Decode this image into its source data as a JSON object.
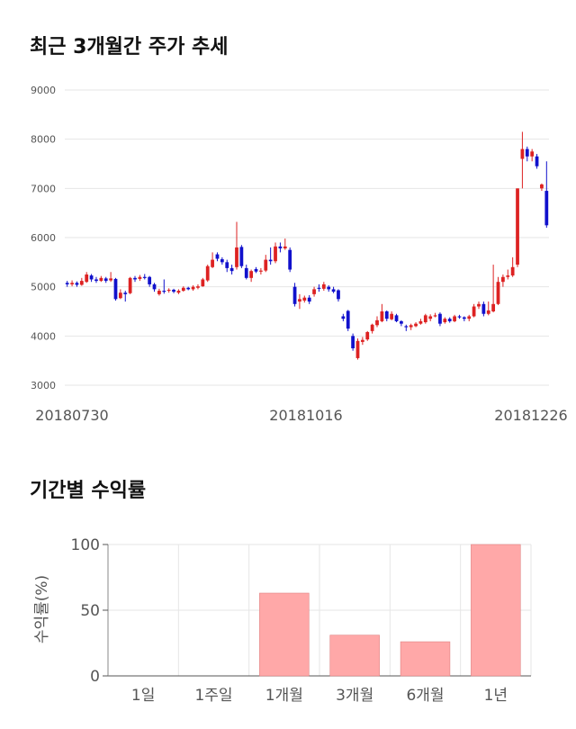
{
  "section1_title": "최근 3개월간 주가 추세",
  "section2_title": "기간별 수익률",
  "colors": {
    "up": "#dd2222",
    "down": "#1111cc",
    "bar": "#ffa8a8",
    "grid": "#e6e6e6"
  },
  "chart_data": [
    {
      "type": "candlestick",
      "title": "최근 3개월간 주가 추세",
      "ylim": [
        3000,
        9000
      ],
      "yticks": [
        "3000",
        "4000",
        "5000",
        "6000",
        "7000",
        "8000",
        "9000"
      ],
      "xtick_labels": [
        "20180730",
        "20181016",
        "20181226"
      ],
      "grid": true,
      "candles": [
        {
          "o": 5080,
          "c": 5050,
          "h": 5120,
          "l": 5000
        },
        {
          "o": 5050,
          "c": 5080,
          "h": 5130,
          "l": 5010
        },
        {
          "o": 5080,
          "c": 5040,
          "h": 5110,
          "l": 5000
        },
        {
          "o": 5040,
          "c": 5120,
          "h": 5180,
          "l": 5020
        },
        {
          "o": 5100,
          "c": 5250,
          "h": 5300,
          "l": 5080
        },
        {
          "o": 5230,
          "c": 5150,
          "h": 5260,
          "l": 5100
        },
        {
          "o": 5150,
          "c": 5120,
          "h": 5200,
          "l": 5080
        },
        {
          "o": 5120,
          "c": 5180,
          "h": 5220,
          "l": 5100
        },
        {
          "o": 5170,
          "c": 5120,
          "h": 5200,
          "l": 5080
        },
        {
          "o": 5130,
          "c": 5170,
          "h": 5300,
          "l": 5100
        },
        {
          "o": 5160,
          "c": 4750,
          "h": 5180,
          "l": 4720
        },
        {
          "o": 4770,
          "c": 4880,
          "h": 4950,
          "l": 4750
        },
        {
          "o": 4880,
          "c": 4850,
          "h": 4920,
          "l": 4700
        },
        {
          "o": 4870,
          "c": 5180,
          "h": 5200,
          "l": 4850
        },
        {
          "o": 5180,
          "c": 5150,
          "h": 5220,
          "l": 5100
        },
        {
          "o": 5160,
          "c": 5200,
          "h": 5240,
          "l": 5120
        },
        {
          "o": 5200,
          "c": 5180,
          "h": 5260,
          "l": 5150
        },
        {
          "o": 5200,
          "c": 5050,
          "h": 5220,
          "l": 5000
        },
        {
          "o": 5050,
          "c": 4950,
          "h": 5080,
          "l": 4900
        },
        {
          "o": 4850,
          "c": 4920,
          "h": 4960,
          "l": 4820
        },
        {
          "o": 4920,
          "c": 4900,
          "h": 5150,
          "l": 4860
        },
        {
          "o": 4920,
          "c": 4940,
          "h": 4970,
          "l": 4880
        },
        {
          "o": 4940,
          "c": 4900,
          "h": 4960,
          "l": 4870
        },
        {
          "o": 4880,
          "c": 4920,
          "h": 4950,
          "l": 4850
        },
        {
          "o": 4920,
          "c": 4980,
          "h": 5010,
          "l": 4900
        },
        {
          "o": 4980,
          "c": 4950,
          "h": 5000,
          "l": 4930
        },
        {
          "o": 4950,
          "c": 5000,
          "h": 5030,
          "l": 4920
        },
        {
          "o": 4980,
          "c": 5010,
          "h": 5050,
          "l": 4950
        },
        {
          "o": 5010,
          "c": 5150,
          "h": 5180,
          "l": 5000
        },
        {
          "o": 5130,
          "c": 5420,
          "h": 5450,
          "l": 5100
        },
        {
          "o": 5400,
          "c": 5550,
          "h": 5700,
          "l": 5380
        },
        {
          "o": 5660,
          "c": 5570,
          "h": 5700,
          "l": 5520
        },
        {
          "o": 5560,
          "c": 5500,
          "h": 5600,
          "l": 5450
        },
        {
          "o": 5500,
          "c": 5380,
          "h": 5550,
          "l": 5300
        },
        {
          "o": 5380,
          "c": 5320,
          "h": 5450,
          "l": 5250
        },
        {
          "o": 5400,
          "c": 5800,
          "h": 6320,
          "l": 5350
        },
        {
          "o": 5810,
          "c": 5420,
          "h": 5850,
          "l": 5380
        },
        {
          "o": 5380,
          "c": 5180,
          "h": 5450,
          "l": 5150
        },
        {
          "o": 5180,
          "c": 5320,
          "h": 5350,
          "l": 5100
        },
        {
          "o": 5360,
          "c": 5310,
          "h": 5400,
          "l": 5280
        },
        {
          "o": 5310,
          "c": 5330,
          "h": 5380,
          "l": 5250
        },
        {
          "o": 5330,
          "c": 5550,
          "h": 5650,
          "l": 5300
        },
        {
          "o": 5550,
          "c": 5520,
          "h": 5800,
          "l": 5450
        },
        {
          "o": 5520,
          "c": 5820,
          "h": 5900,
          "l": 5480
        },
        {
          "o": 5820,
          "c": 5780,
          "h": 5900,
          "l": 5700
        },
        {
          "o": 5780,
          "c": 5820,
          "h": 5980,
          "l": 5750
        },
        {
          "o": 5750,
          "c": 5350,
          "h": 5800,
          "l": 5300
        },
        {
          "o": 5000,
          "c": 4650,
          "h": 5080,
          "l": 4600
        },
        {
          "o": 4700,
          "c": 4750,
          "h": 4850,
          "l": 4550
        },
        {
          "o": 4720,
          "c": 4780,
          "h": 4820,
          "l": 4680
        },
        {
          "o": 4780,
          "c": 4700,
          "h": 4830,
          "l": 4650
        },
        {
          "o": 4850,
          "c": 4950,
          "h": 5000,
          "l": 4800
        },
        {
          "o": 4980,
          "c": 4960,
          "h": 5050,
          "l": 4900
        },
        {
          "o": 4960,
          "c": 5050,
          "h": 5100,
          "l": 4920
        },
        {
          "o": 5000,
          "c": 4950,
          "h": 5030,
          "l": 4900
        },
        {
          "o": 4950,
          "c": 4900,
          "h": 5000,
          "l": 4870
        },
        {
          "o": 4930,
          "c": 4750,
          "h": 4950,
          "l": 4700
        },
        {
          "o": 4400,
          "c": 4350,
          "h": 4450,
          "l": 4300
        },
        {
          "o": 4510,
          "c": 4150,
          "h": 4530,
          "l": 4100
        },
        {
          "o": 4000,
          "c": 3750,
          "h": 4050,
          "l": 3700
        },
        {
          "o": 3550,
          "c": 3900,
          "h": 3950,
          "l": 3520
        },
        {
          "o": 3880,
          "c": 3920,
          "h": 3980,
          "l": 3820
        },
        {
          "o": 3930,
          "c": 4080,
          "h": 4100,
          "l": 3900
        },
        {
          "o": 4100,
          "c": 4230,
          "h": 4250,
          "l": 4050
        },
        {
          "o": 4220,
          "c": 4320,
          "h": 4400,
          "l": 4180
        },
        {
          "o": 4300,
          "c": 4500,
          "h": 4650,
          "l": 4280
        },
        {
          "o": 4500,
          "c": 4350,
          "h": 4520,
          "l": 4300
        },
        {
          "o": 4340,
          "c": 4450,
          "h": 4500,
          "l": 4320
        },
        {
          "o": 4420,
          "c": 4300,
          "h": 4450,
          "l": 4280
        },
        {
          "o": 4300,
          "c": 4250,
          "h": 4320,
          "l": 4200
        },
        {
          "o": 4200,
          "c": 4180,
          "h": 4230,
          "l": 4100
        },
        {
          "o": 4180,
          "c": 4220,
          "h": 4250,
          "l": 4120
        },
        {
          "o": 4200,
          "c": 4250,
          "h": 4280,
          "l": 4180
        },
        {
          "o": 4250,
          "c": 4300,
          "h": 4350,
          "l": 4230
        },
        {
          "o": 4280,
          "c": 4420,
          "h": 4450,
          "l": 4250
        },
        {
          "o": 4350,
          "c": 4400,
          "h": 4440,
          "l": 4300
        },
        {
          "o": 4400,
          "c": 4420,
          "h": 4470,
          "l": 4380
        },
        {
          "o": 4450,
          "c": 4250,
          "h": 4480,
          "l": 4200
        },
        {
          "o": 4280,
          "c": 4350,
          "h": 4380,
          "l": 4250
        },
        {
          "o": 4350,
          "c": 4300,
          "h": 4380,
          "l": 4270
        },
        {
          "o": 4300,
          "c": 4400,
          "h": 4430,
          "l": 4280
        },
        {
          "o": 4400,
          "c": 4380,
          "h": 4430,
          "l": 4350
        },
        {
          "o": 4380,
          "c": 4350,
          "h": 4400,
          "l": 4300
        },
        {
          "o": 4350,
          "c": 4400,
          "h": 4430,
          "l": 4300
        },
        {
          "o": 4400,
          "c": 4600,
          "h": 4650,
          "l": 4380
        },
        {
          "o": 4600,
          "c": 4650,
          "h": 4700,
          "l": 4550
        },
        {
          "o": 4650,
          "c": 4450,
          "h": 4700,
          "l": 4400
        },
        {
          "o": 4450,
          "c": 4520,
          "h": 4700,
          "l": 4420
        },
        {
          "o": 4500,
          "c": 4650,
          "h": 5450,
          "l": 4480
        },
        {
          "o": 4650,
          "c": 5100,
          "h": 5200,
          "l": 4630
        },
        {
          "o": 5100,
          "c": 5200,
          "h": 5250,
          "l": 5000
        },
        {
          "o": 5200,
          "c": 5230,
          "h": 5350,
          "l": 5150
        },
        {
          "o": 5230,
          "c": 5400,
          "h": 5600,
          "l": 5200
        },
        {
          "o": 5450,
          "c": 7000,
          "h": 7000,
          "l": 5400
        },
        {
          "o": 7600,
          "c": 7800,
          "h": 8150,
          "l": 7000
        },
        {
          "o": 7800,
          "c": 7650,
          "h": 7850,
          "l": 7550
        },
        {
          "o": 7650,
          "c": 7750,
          "h": 7800,
          "l": 7550
        },
        {
          "o": 7650,
          "c": 7450,
          "h": 7700,
          "l": 7400
        },
        {
          "o": 7000,
          "c": 7080,
          "h": 7100,
          "l": 6950
        },
        {
          "o": 6950,
          "c": 6250,
          "h": 7550,
          "l": 6200
        }
      ]
    },
    {
      "type": "bar",
      "title": "기간별 수익률",
      "categories": [
        "1일",
        "1주일",
        "1개월",
        "3개월",
        "6개월",
        "1년"
      ],
      "values": [
        0,
        0,
        63,
        31,
        26,
        100
      ],
      "ylim": [
        0,
        100
      ],
      "yticks": [
        "0",
        "50",
        "100"
      ],
      "ylabel": "수익률(%)",
      "xlabel": "",
      "grid": true
    }
  ]
}
